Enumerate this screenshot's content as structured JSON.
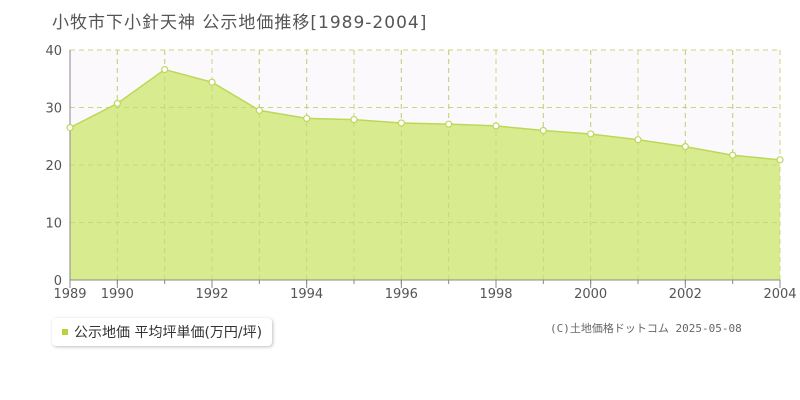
{
  "chart_data": {
    "type": "area",
    "title": "小牧市下小針天神 公示地価推移[1989-2004]",
    "x": [
      1989,
      1990,
      1991,
      1992,
      1993,
      1994,
      1995,
      1996,
      1997,
      1998,
      1999,
      2000,
      2001,
      2002,
      2003,
      2004
    ],
    "series": [
      {
        "name": "公示地価 平均坪単価(万円/坪)",
        "values": [
          26.5,
          30.7,
          36.6,
          34.4,
          29.5,
          28.1,
          27.9,
          27.3,
          27.1,
          26.8,
          26.0,
          25.4,
          24.4,
          23.2,
          21.7,
          20.9
        ]
      }
    ],
    "x_tick_labels": [
      "1989",
      "1990",
      "1992",
      "1994",
      "1996",
      "1998",
      "2000",
      "2002",
      "2004"
    ],
    "y_tick_labels": [
      "0",
      "10",
      "20",
      "30",
      "40"
    ],
    "ylim": [
      0,
      40
    ],
    "xlim": [
      1989,
      2004
    ],
    "grid": true,
    "legend_position": "bottom-left",
    "colors": {
      "fill": "#d9eb8f",
      "line": "#bcd85a",
      "marker_fill": "#ffffff",
      "legend_marker": "#b5d43e",
      "grid": "#cccccc",
      "axis": "#888888"
    }
  },
  "credit": "(C)土地価格ドットコム 2025-05-08"
}
